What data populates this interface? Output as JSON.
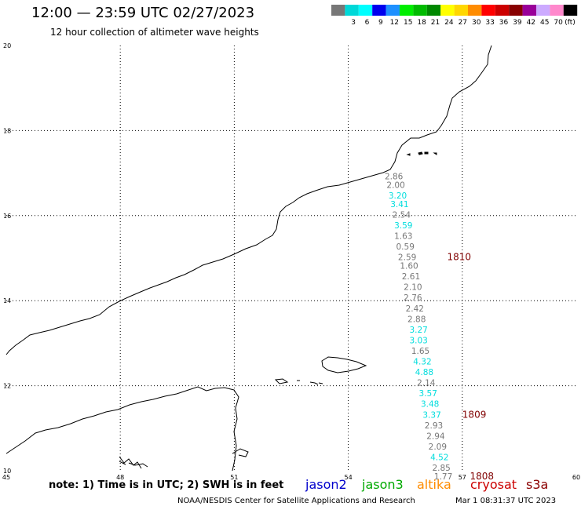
{
  "header": {
    "title": "12:00 — 23:59 UTC 02/27/2023",
    "subtitle": "12 hour collection of altimeter wave heights"
  },
  "colorbar": {
    "unit": "(ft)",
    "entries": [
      {
        "label": "",
        "color": "#777777"
      },
      {
        "label": "3",
        "color": "#00d8d8"
      },
      {
        "label": "6",
        "color": "#00ffff"
      },
      {
        "label": "9",
        "color": "#0000ee"
      },
      {
        "label": "12",
        "color": "#1e90ff"
      },
      {
        "label": "15",
        "color": "#00ee00"
      },
      {
        "label": "18",
        "color": "#00bb00"
      },
      {
        "label": "21",
        "color": "#008800"
      },
      {
        "label": "24",
        "color": "#ffff00"
      },
      {
        "label": "27",
        "color": "#ffd700"
      },
      {
        "label": "30",
        "color": "#ff8c00"
      },
      {
        "label": "33",
        "color": "#ff0000"
      },
      {
        "label": "36",
        "color": "#cc0000"
      },
      {
        "label": "39",
        "color": "#880000"
      },
      {
        "label": "42",
        "color": "#990099"
      },
      {
        "label": "45",
        "color": "#ccaaff"
      },
      {
        "label": "70",
        "color": "#ff88cc"
      },
      {
        "label": "",
        "color": "#000000"
      }
    ]
  },
  "map": {
    "lon_ticks": [
      "45",
      "48",
      "51",
      "54",
      "57",
      "60"
    ],
    "lat_ticks": [
      "10",
      "12",
      "14",
      "16",
      "18",
      "20"
    ],
    "lon_range": [
      45,
      60
    ],
    "lat_range": [
      10,
      20
    ]
  },
  "observations": [
    {
      "lat": 16.85,
      "lon": 55.2,
      "value": "2.86",
      "sat": "altika"
    },
    {
      "lat": 16.65,
      "lon": 55.25,
      "value": "2.00",
      "sat": "altika"
    },
    {
      "lat": 16.4,
      "lon": 55.3,
      "value": "3.20",
      "sat": "jason3"
    },
    {
      "lat": 16.2,
      "lon": 55.35,
      "value": "3.41",
      "sat": "jason3"
    },
    {
      "lat": 15.95,
      "lon": 55.4,
      "value": "2.54",
      "sat": "altika"
    },
    {
      "lat": 15.7,
      "lon": 55.45,
      "value": "3.59",
      "sat": "jason3"
    },
    {
      "lat": 15.45,
      "lon": 55.45,
      "value": "1.63",
      "sat": "altika"
    },
    {
      "lat": 15.2,
      "lon": 55.5,
      "value": "0.59",
      "sat": "altika"
    },
    {
      "lat": 14.95,
      "lon": 55.55,
      "value": "2.59",
      "sat": "altika"
    },
    {
      "lat": 14.75,
      "lon": 55.6,
      "value": "1.60",
      "sat": "altika"
    },
    {
      "lat": 14.5,
      "lon": 55.65,
      "value": "2.61",
      "sat": "altika"
    },
    {
      "lat": 14.25,
      "lon": 55.7,
      "value": "2.10",
      "sat": "altika"
    },
    {
      "lat": 14.0,
      "lon": 55.7,
      "value": "2.76",
      "sat": "altika"
    },
    {
      "lat": 13.75,
      "lon": 55.75,
      "value": "2.42",
      "sat": "altika"
    },
    {
      "lat": 13.5,
      "lon": 55.8,
      "value": "2.88",
      "sat": "altika"
    },
    {
      "lat": 13.25,
      "lon": 55.85,
      "value": "3.27",
      "sat": "jason3"
    },
    {
      "lat": 13.0,
      "lon": 55.85,
      "value": "3.03",
      "sat": "jason3"
    },
    {
      "lat": 12.75,
      "lon": 55.9,
      "value": "1.65",
      "sat": "altika"
    },
    {
      "lat": 12.5,
      "lon": 55.95,
      "value": "4.32",
      "sat": "jason3"
    },
    {
      "lat": 12.25,
      "lon": 56.0,
      "value": "4.88",
      "sat": "jason3"
    },
    {
      "lat": 12.0,
      "lon": 56.05,
      "value": "2.14",
      "sat": "altika"
    },
    {
      "lat": 11.75,
      "lon": 56.1,
      "value": "3.57",
      "sat": "jason3"
    },
    {
      "lat": 11.5,
      "lon": 56.15,
      "value": "3.48",
      "sat": "jason3"
    },
    {
      "lat": 11.25,
      "lon": 56.2,
      "value": "3.37",
      "sat": "jason3"
    },
    {
      "lat": 11.0,
      "lon": 56.25,
      "value": "2.93",
      "sat": "altika"
    },
    {
      "lat": 10.75,
      "lon": 56.3,
      "value": "2.94",
      "sat": "altika"
    },
    {
      "lat": 10.5,
      "lon": 56.35,
      "value": "2.09",
      "sat": "altika"
    },
    {
      "lat": 10.25,
      "lon": 56.4,
      "value": "4.52",
      "sat": "jason3"
    },
    {
      "lat": 10.0,
      "lon": 56.45,
      "value": "2.85",
      "sat": "altika"
    },
    {
      "lat": 9.8,
      "lon": 56.5,
      "value": "1.77",
      "sat": "altika"
    }
  ],
  "time_labels": [
    {
      "lat": 14.95,
      "lon": 56.6,
      "text": "1810"
    },
    {
      "lat": 11.25,
      "lon": 57.0,
      "text": "1809"
    },
    {
      "lat": 9.8,
      "lon": 57.2,
      "text": "1808"
    }
  ],
  "footer": {
    "note": "note: 1) Time is in UTC; 2) SWH is in feet",
    "credit": "NOAA/NESDIS Center for Satellite Applications and Research",
    "generated": "Mar  1 08:31:37 UTC 2023"
  },
  "satellites": [
    {
      "name": "jason2",
      "color": "#0000cc"
    },
    {
      "name": "jason3",
      "color": "#00aa00"
    },
    {
      "name": "altika",
      "color": "#ff8c00"
    },
    {
      "name": "cryosat",
      "color": "#cc0000"
    },
    {
      "name": "s3a",
      "color": "#8b0000"
    }
  ],
  "colors": {
    "coastline": "#000000",
    "grid": "#000000",
    "altika_text": "#777777",
    "jason3_text": "#00dddd",
    "time_label": "#800000"
  }
}
